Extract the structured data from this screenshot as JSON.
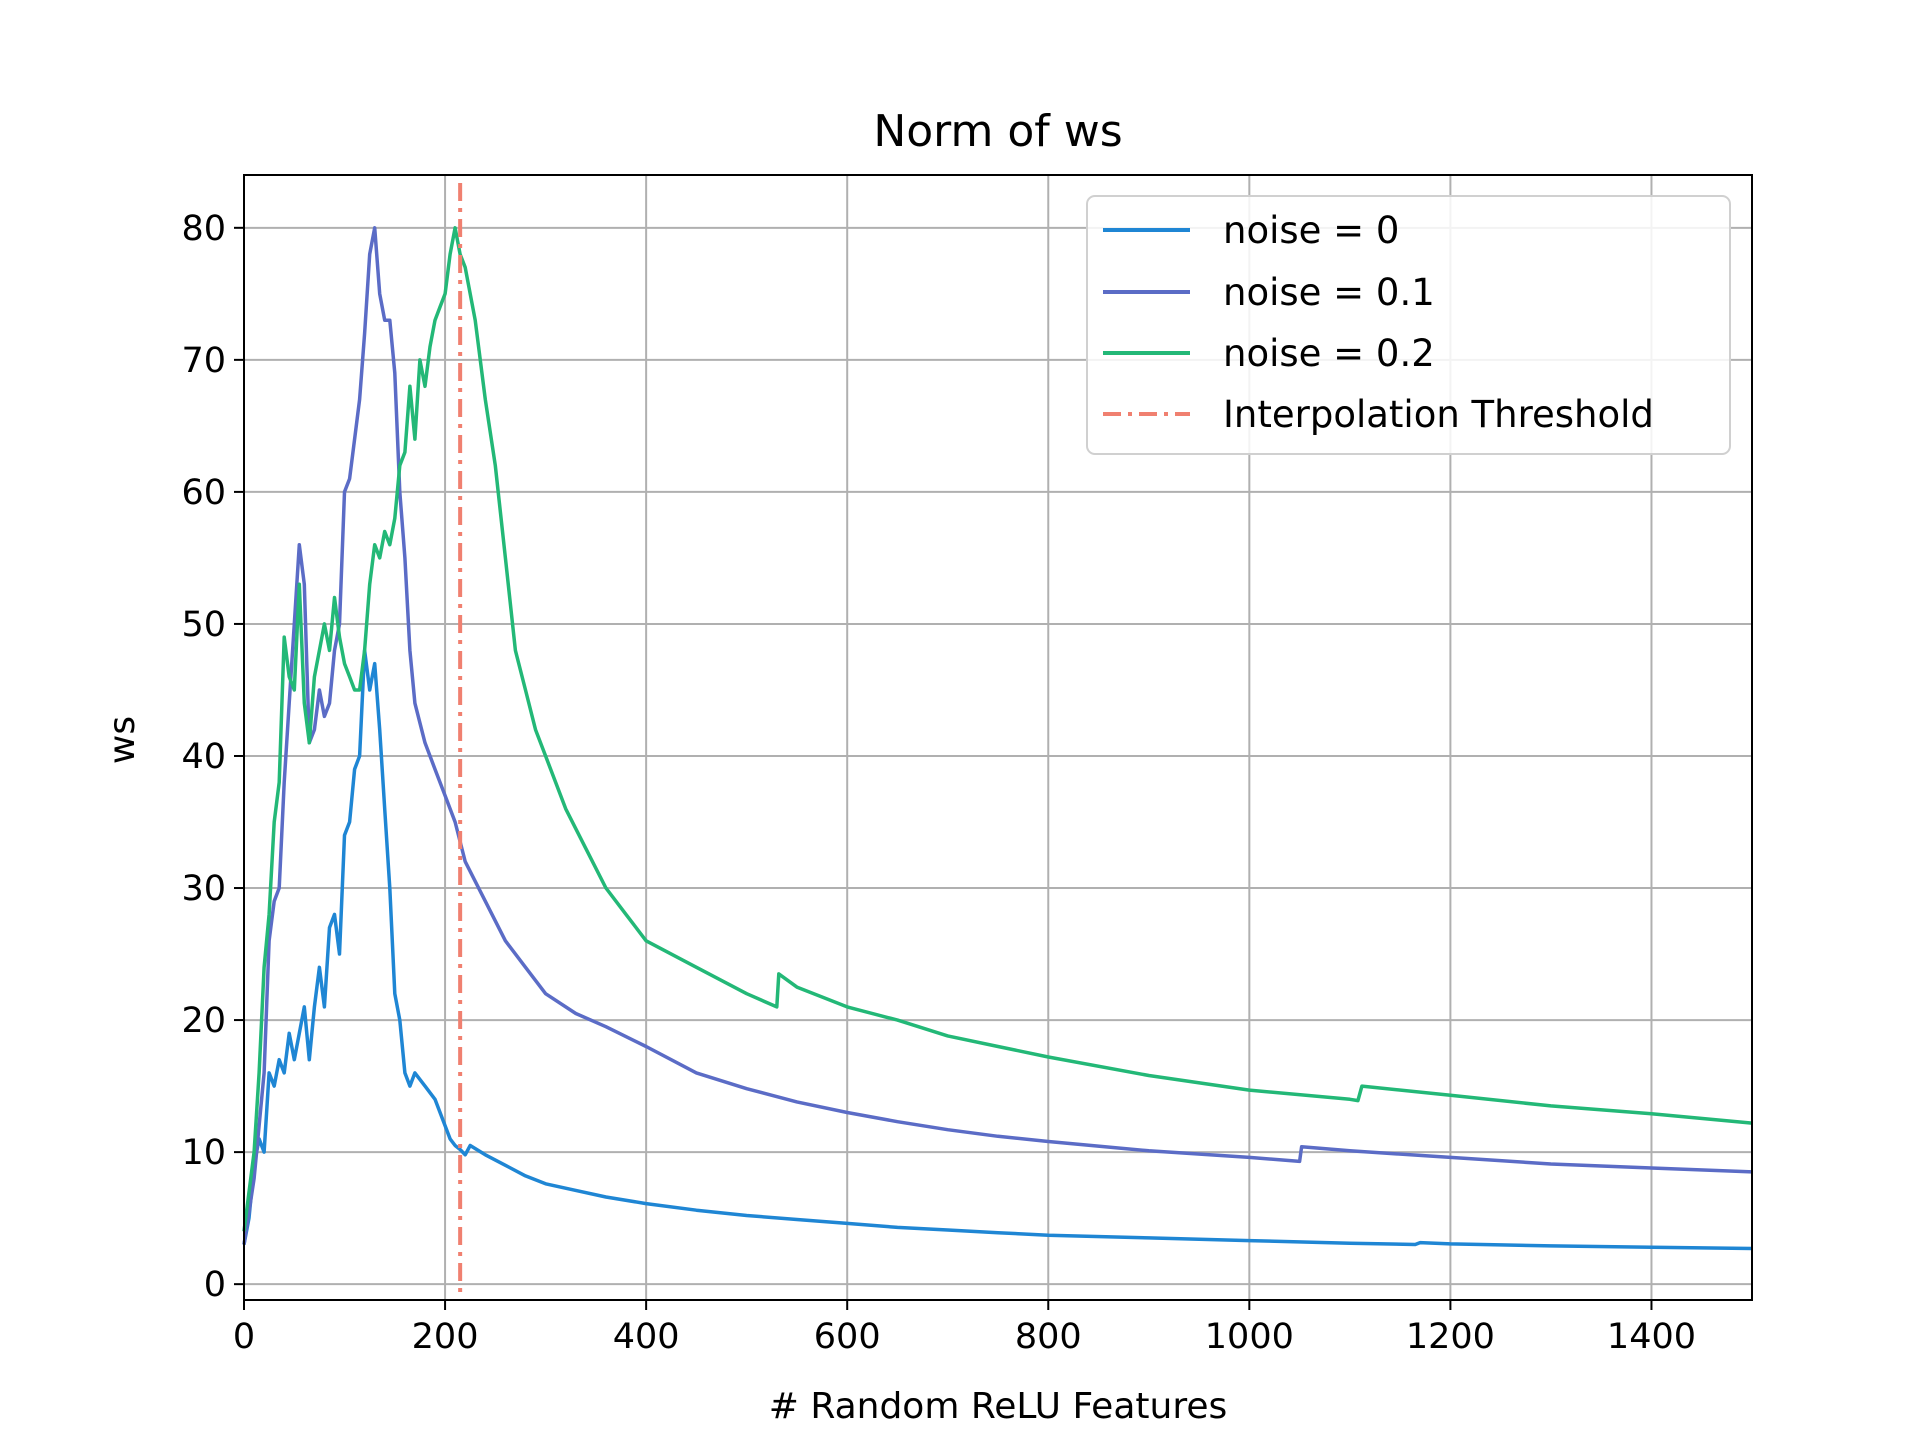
{
  "chart_data": {
    "type": "line",
    "title": "Norm of ws",
    "xlabel": "# Random ReLU Features",
    "ylabel": "ws",
    "xlim": [
      0,
      1500
    ],
    "ylim": [
      -1.2,
      84
    ],
    "xticks": [
      0,
      200,
      400,
      600,
      800,
      1000,
      1200,
      1400
    ],
    "yticks": [
      0,
      10,
      20,
      30,
      40,
      50,
      60,
      70,
      80
    ],
    "grid": true,
    "legend_position": "top-right",
    "colors": {
      "noise0": "#1f86d4",
      "noise01": "#5b6cc6",
      "noise02": "#23b877",
      "threshold": "#f08070"
    },
    "series": [
      {
        "name": "noise = 0",
        "color": "#1f86d4",
        "x": [
          0,
          5,
          10,
          15,
          20,
          25,
          30,
          35,
          40,
          45,
          50,
          55,
          60,
          65,
          70,
          75,
          80,
          85,
          90,
          95,
          100,
          105,
          110,
          115,
          120,
          125,
          130,
          135,
          140,
          145,
          150,
          155,
          160,
          165,
          170,
          180,
          190,
          200,
          205,
          210,
          215,
          220,
          225,
          240,
          260,
          280,
          300,
          330,
          360,
          400,
          450,
          500,
          550,
          600,
          650,
          700,
          750,
          800,
          900,
          1000,
          1100,
          1165,
          1170,
          1200,
          1300,
          1400,
          1500
        ],
        "y": [
          3,
          5,
          9,
          11,
          10,
          16,
          15,
          17,
          16,
          19,
          17,
          19,
          21,
          17,
          21,
          24,
          21,
          27,
          28,
          25,
          34,
          35,
          39,
          40,
          48,
          45,
          47,
          42,
          36,
          30,
          22,
          20,
          16,
          15,
          16,
          15,
          14,
          12,
          11,
          10.5,
          10.2,
          9.8,
          10.5,
          9.8,
          9,
          8.2,
          7.6,
          7.1,
          6.6,
          6.1,
          5.6,
          5.2,
          4.9,
          4.6,
          4.3,
          4.1,
          3.9,
          3.7,
          3.5,
          3.3,
          3.1,
          3.0,
          3.15,
          3.05,
          2.9,
          2.8,
          2.7
        ]
      },
      {
        "name": "noise = 0.1",
        "color": "#5b6cc6",
        "x": [
          0,
          10,
          20,
          25,
          30,
          35,
          40,
          45,
          50,
          55,
          60,
          65,
          70,
          75,
          80,
          85,
          90,
          95,
          100,
          105,
          110,
          115,
          120,
          125,
          130,
          135,
          140,
          145,
          150,
          155,
          160,
          165,
          170,
          180,
          190,
          200,
          210,
          220,
          240,
          260,
          280,
          300,
          330,
          360,
          400,
          450,
          500,
          550,
          600,
          650,
          700,
          750,
          800,
          900,
          1000,
          1050,
          1052,
          1100,
          1200,
          1300,
          1400,
          1500
        ],
        "y": [
          3,
          8,
          16,
          26,
          29,
          30,
          38,
          44,
          50,
          56,
          53,
          41,
          42,
          45,
          43,
          44,
          48,
          50,
          60,
          61,
          64,
          67,
          72,
          78,
          80,
          75,
          73,
          73,
          69,
          60,
          55,
          48,
          44,
          41,
          39,
          37,
          35,
          32,
          29,
          26,
          24,
          22,
          20.5,
          19.5,
          18,
          16,
          14.8,
          13.8,
          13,
          12.3,
          11.7,
          11.2,
          10.8,
          10.1,
          9.6,
          9.3,
          10.4,
          10.1,
          9.6,
          9.1,
          8.8,
          8.5
        ]
      },
      {
        "name": "noise = 0.2",
        "color": "#23b877",
        "x": [
          0,
          10,
          15,
          20,
          25,
          30,
          35,
          40,
          45,
          50,
          55,
          60,
          65,
          70,
          75,
          80,
          85,
          90,
          95,
          100,
          105,
          110,
          115,
          120,
          125,
          130,
          135,
          140,
          145,
          150,
          155,
          160,
          165,
          170,
          175,
          180,
          185,
          190,
          195,
          200,
          205,
          210,
          215,
          220,
          230,
          240,
          250,
          260,
          270,
          280,
          290,
          300,
          320,
          340,
          360,
          380,
          400,
          450,
          500,
          530,
          532,
          550,
          600,
          650,
          700,
          750,
          800,
          900,
          1000,
          1100,
          1108,
          1112,
          1200,
          1300,
          1400,
          1500
        ],
        "y": [
          4,
          10,
          16,
          24,
          28,
          35,
          38,
          49,
          46,
          45,
          53,
          44,
          41,
          46,
          48,
          50,
          48,
          52,
          49,
          47,
          46,
          45,
          45,
          48,
          53,
          56,
          55,
          57,
          56,
          58,
          62,
          63,
          68,
          64,
          70,
          68,
          71,
          73,
          74,
          75,
          78,
          80,
          78,
          77,
          73,
          67,
          62,
          55,
          48,
          45,
          42,
          40,
          36,
          33,
          30,
          28,
          26,
          24,
          22,
          21,
          23.5,
          22.5,
          21,
          20,
          18.8,
          18,
          17.2,
          15.8,
          14.7,
          14,
          13.9,
          15,
          14.3,
          13.5,
          12.9,
          12.2
        ]
      }
    ],
    "annotations": [
      {
        "name": "Interpolation Threshold",
        "type": "vline",
        "x": 215,
        "style": "dash-dot",
        "color": "#f08070"
      }
    ]
  }
}
